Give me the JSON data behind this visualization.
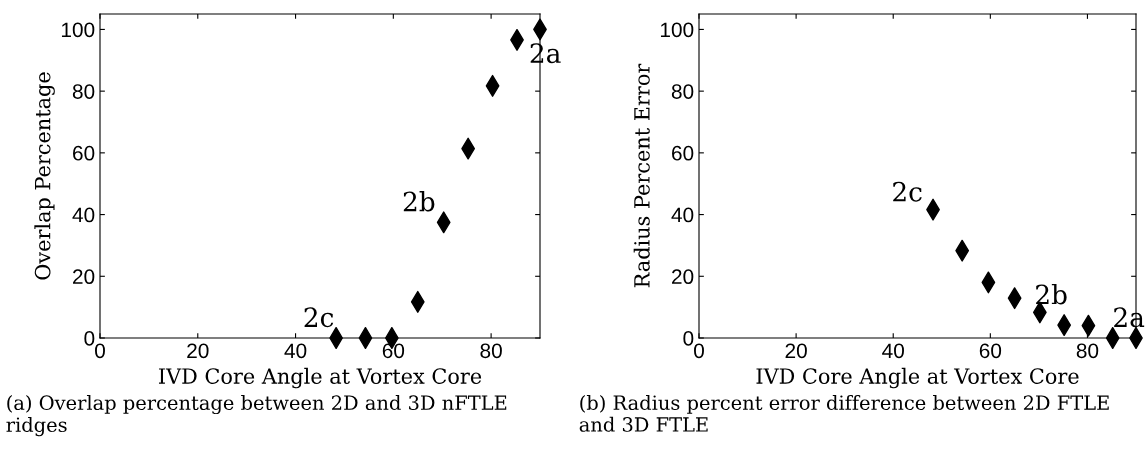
{
  "chart_data": [
    {
      "type": "scatter",
      "xlabel": "IVD Core Angle at Vortex Core",
      "ylabel": "Overlap Percentage",
      "marker": "diamond",
      "grid": false,
      "legend": false,
      "xlim": [
        0,
        90
      ],
      "ylim": [
        0,
        105
      ],
      "xticks": [
        0,
        20,
        40,
        60,
        80
      ],
      "yticks": [
        0,
        20,
        40,
        60,
        80,
        100
      ],
      "series": [
        {
          "color": "#000000",
          "x": [
            48.3,
            54.3,
            59.7,
            65,
            70.3,
            75.3,
            80.3,
            85.3,
            90
          ],
          "values": [
            0,
            0,
            0,
            11.7,
            37.5,
            61.4,
            81.7,
            96.6,
            100
          ]
        }
      ],
      "annotations": [
        {
          "text": "2c",
          "x": 48.3,
          "y": 0
        },
        {
          "text": "2b",
          "x": 70.3,
          "y": 37.5
        },
        {
          "text": "2a",
          "x": 90,
          "y": 100
        },
        "(a) Overlap percentage between 2D and 3D nFTLE ridges"
      ]
    },
    {
      "type": "scatter",
      "xlabel": "IVD Core Angle at Vortex Core",
      "ylabel": "Radius Percent Error",
      "marker": "diamond",
      "grid": false,
      "legend": false,
      "xlim": [
        0,
        90
      ],
      "ylim": [
        0,
        105
      ],
      "xticks": [
        0,
        20,
        40,
        60,
        80
      ],
      "yticks": [
        0,
        20,
        40,
        60,
        80,
        100
      ],
      "series": [
        {
          "color": "#000000",
          "x": [
            48.2,
            54.2,
            59.6,
            65,
            70.2,
            75.2,
            80.2,
            85.2,
            90
          ],
          "values": [
            41.6,
            28.3,
            18,
            12.9,
            8.3,
            4.2,
            4,
            0,
            0
          ]
        }
      ],
      "annotations": [
        {
          "text": "2c",
          "x": 48.2,
          "y": 41.6
        },
        {
          "text": "2b",
          "x": 70.2,
          "y": 8.3
        },
        {
          "text": "2a",
          "x": 90,
          "y": 0
        },
        "(b) Radius percent error difference between 2D FTLE and 3D FTLE"
      ]
    }
  ]
}
